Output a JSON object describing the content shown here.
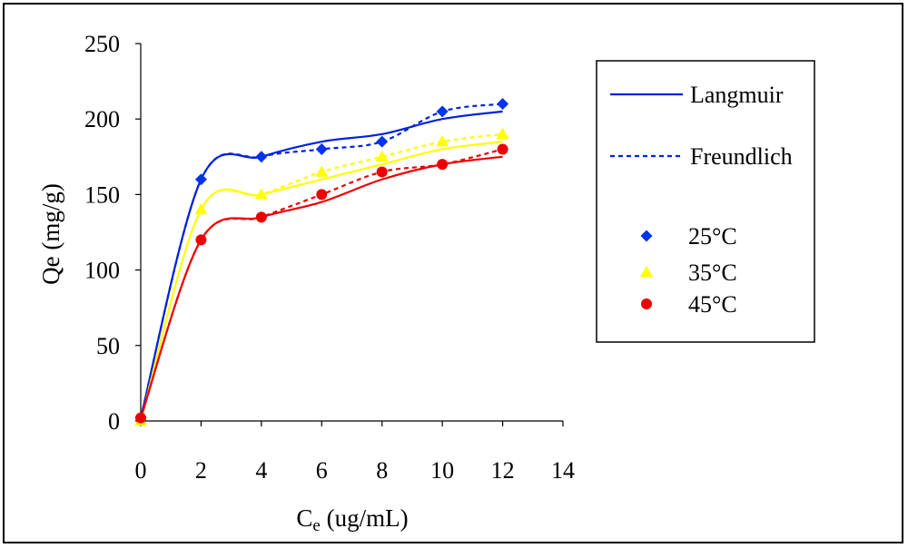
{
  "chart_data": {
    "type": "line",
    "title": "",
    "xlabel": "C",
    "xlabel_sub": "e",
    "xlabel_unit": "(ug/mL)",
    "ylabel": "Qe (mg/g)",
    "xlim": [
      0,
      14
    ],
    "ylim": [
      0,
      250
    ],
    "xticks": [
      0,
      2,
      4,
      6,
      8,
      10,
      12,
      14
    ],
    "yticks": [
      0,
      50,
      100,
      150,
      200,
      250
    ],
    "x": [
      0,
      2,
      4,
      6,
      8,
      10,
      12
    ],
    "series": [
      {
        "name": "25°C",
        "color": "#0022dd",
        "marker": "diamond",
        "marker_color": "#0033ee",
        "observed": [
          2,
          160,
          175,
          180,
          185,
          205,
          210
        ],
        "langmuir": [
          2,
          160,
          175,
          185,
          190,
          200,
          205
        ],
        "freundlich": [
          2,
          160,
          175,
          180,
          185,
          205,
          210
        ]
      },
      {
        "name": "35°C",
        "color": "#ffff00",
        "marker": "triangle",
        "marker_color": "#ffff00",
        "observed": [
          0,
          140,
          150,
          165,
          175,
          185,
          190
        ],
        "langmuir": [
          0,
          140,
          150,
          160,
          170,
          180,
          185
        ],
        "freundlich": [
          0,
          140,
          150,
          165,
          175,
          185,
          190
        ]
      },
      {
        "name": "45°C",
        "color": "#ee0000",
        "marker": "circle",
        "marker_color": "#ee0000",
        "observed": [
          2,
          120,
          135,
          150,
          165,
          170,
          180
        ],
        "langmuir": [
          2,
          120,
          135,
          145,
          160,
          170,
          175
        ],
        "freundlich": [
          2,
          120,
          135,
          150,
          165,
          170,
          180
        ]
      }
    ],
    "legend": {
      "position": "right",
      "line_entries": [
        {
          "label": "Langmuir",
          "style": "solid",
          "color": "#0022dd"
        },
        {
          "label": "Freundlich",
          "style": "dashed",
          "color": "#0022dd"
        }
      ],
      "marker_entries": [
        {
          "label": "25°C",
          "marker": "diamond",
          "color": "#0033ee"
        },
        {
          "label": "35°C",
          "marker": "triangle",
          "color": "#ffff00"
        },
        {
          "label": "45°C",
          "marker": "circle",
          "color": "#ee0000"
        }
      ]
    }
  }
}
